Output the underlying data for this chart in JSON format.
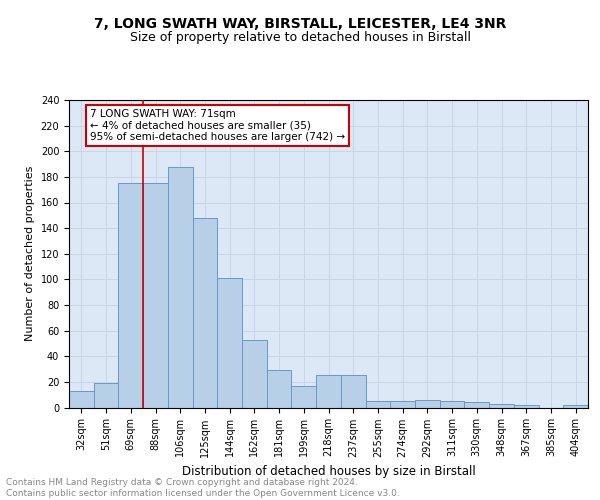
{
  "title1": "7, LONG SWATH WAY, BIRSTALL, LEICESTER, LE4 3NR",
  "title2": "Size of property relative to detached houses in Birstall",
  "xlabel": "Distribution of detached houses by size in Birstall",
  "ylabel": "Number of detached properties",
  "bar_labels": [
    "32sqm",
    "51sqm",
    "69sqm",
    "88sqm",
    "106sqm",
    "125sqm",
    "144sqm",
    "162sqm",
    "181sqm",
    "199sqm",
    "218sqm",
    "237sqm",
    "255sqm",
    "274sqm",
    "292sqm",
    "311sqm",
    "330sqm",
    "348sqm",
    "367sqm",
    "385sqm",
    "404sqm"
  ],
  "bar_values": [
    13,
    19,
    175,
    175,
    188,
    148,
    101,
    53,
    29,
    17,
    25,
    25,
    5,
    5,
    6,
    5,
    4,
    3,
    2,
    0,
    2
  ],
  "bar_color": "#b8cfe8",
  "bar_edge_color": "#6699cc",
  "vline_color": "#cc0000",
  "vline_x_index": 2.5,
  "annotation_text": "7 LONG SWATH WAY: 71sqm\n← 4% of detached houses are smaller (35)\n95% of semi-detached houses are larger (742) →",
  "annotation_box_facecolor": "white",
  "annotation_box_edgecolor": "#cc0000",
  "grid_color": "#c8d4e8",
  "background_color": "#dce8f5",
  "footer_text": "Contains HM Land Registry data © Crown copyright and database right 2024.\nContains public sector information licensed under the Open Government Licence v3.0.",
  "ylim": [
    0,
    240
  ],
  "yticks": [
    0,
    20,
    40,
    60,
    80,
    100,
    120,
    140,
    160,
    180,
    200,
    220,
    240
  ],
  "title1_fontsize": 10,
  "title2_fontsize": 9,
  "xlabel_fontsize": 8.5,
  "ylabel_fontsize": 8,
  "tick_fontsize": 7,
  "annotation_fontsize": 7.5,
  "footer_fontsize": 6.5
}
